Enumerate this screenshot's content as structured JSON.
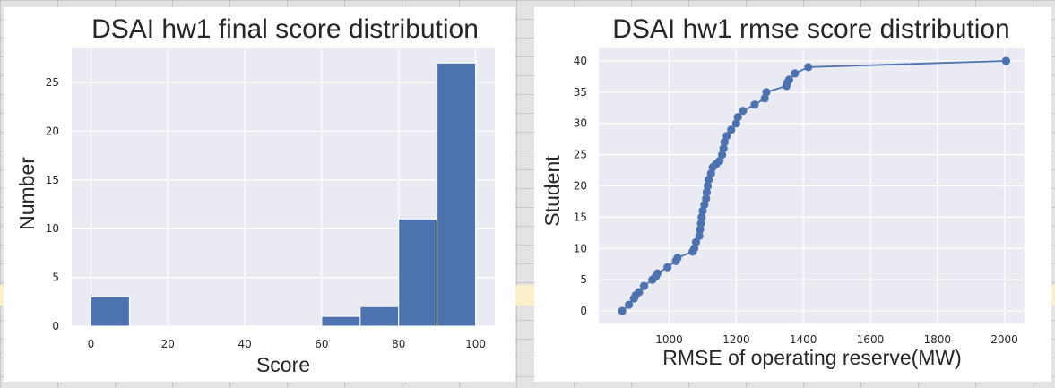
{
  "charts": [
    {
      "id": "final",
      "chart_data": {
        "type": "bar",
        "title": "DSAI hw1 final score distribution",
        "xlabel": "Score",
        "ylabel": "Number",
        "bins": [
          {
            "start": 0,
            "end": 10,
            "value": 3
          },
          {
            "start": 10,
            "end": 20,
            "value": 0
          },
          {
            "start": 20,
            "end": 30,
            "value": 0
          },
          {
            "start": 30,
            "end": 40,
            "value": 0
          },
          {
            "start": 40,
            "end": 50,
            "value": 0
          },
          {
            "start": 50,
            "end": 60,
            "value": 0
          },
          {
            "start": 60,
            "end": 70,
            "value": 1
          },
          {
            "start": 70,
            "end": 80,
            "value": 2
          },
          {
            "start": 80,
            "end": 90,
            "value": 11
          },
          {
            "start": 90,
            "end": 100,
            "value": 27
          }
        ],
        "xlim": [
          -5,
          105
        ],
        "ylim": [
          0,
          28.5
        ],
        "xticks": [
          0,
          20,
          40,
          60,
          80,
          100
        ],
        "yticks": [
          0,
          5,
          10,
          15,
          20,
          25
        ],
        "grid": true,
        "bar_color": "#4c72b0",
        "background": "#eaeaf2"
      }
    },
    {
      "id": "rmse",
      "chart_data": {
        "type": "line",
        "title": "DSAI hw1 rmse score distribution",
        "xlabel": "RMSE of operating reserve(MW)",
        "ylabel": "Student",
        "x": [
          860,
          880,
          895,
          900,
          910,
          925,
          950,
          960,
          965,
          995,
          1020,
          1025,
          1070,
          1075,
          1080,
          1090,
          1092,
          1095,
          1097,
          1100,
          1105,
          1110,
          1112,
          1115,
          1118,
          1125,
          1130,
          1140,
          1150,
          1158,
          1162,
          1165,
          1172,
          1185,
          1200,
          1205,
          1220,
          1255,
          1285,
          1290,
          1350,
          1352,
          1358,
          1375,
          1415,
          2005
        ],
        "y": [
          0,
          1,
          2,
          2.5,
          3,
          4,
          5,
          5.5,
          6,
          7,
          8,
          8.5,
          9.5,
          10,
          11,
          12,
          13,
          14,
          15,
          16,
          17,
          18,
          19,
          20,
          21,
          22,
          23,
          23.5,
          24,
          25,
          26,
          27,
          28,
          29,
          30,
          31,
          32,
          33,
          34,
          35,
          36,
          36.5,
          37,
          38,
          39,
          40
        ],
        "xlim": [
          790,
          2060
        ],
        "ylim": [
          -2,
          42
        ],
        "xticks": [
          1000,
          1200,
          1400,
          1600,
          1800,
          2000
        ],
        "yticks": [
          0,
          5,
          10,
          15,
          20,
          25,
          30,
          35,
          40
        ],
        "grid": true,
        "line_color": "#4c72b0",
        "background": "#eaeaf2"
      }
    }
  ]
}
